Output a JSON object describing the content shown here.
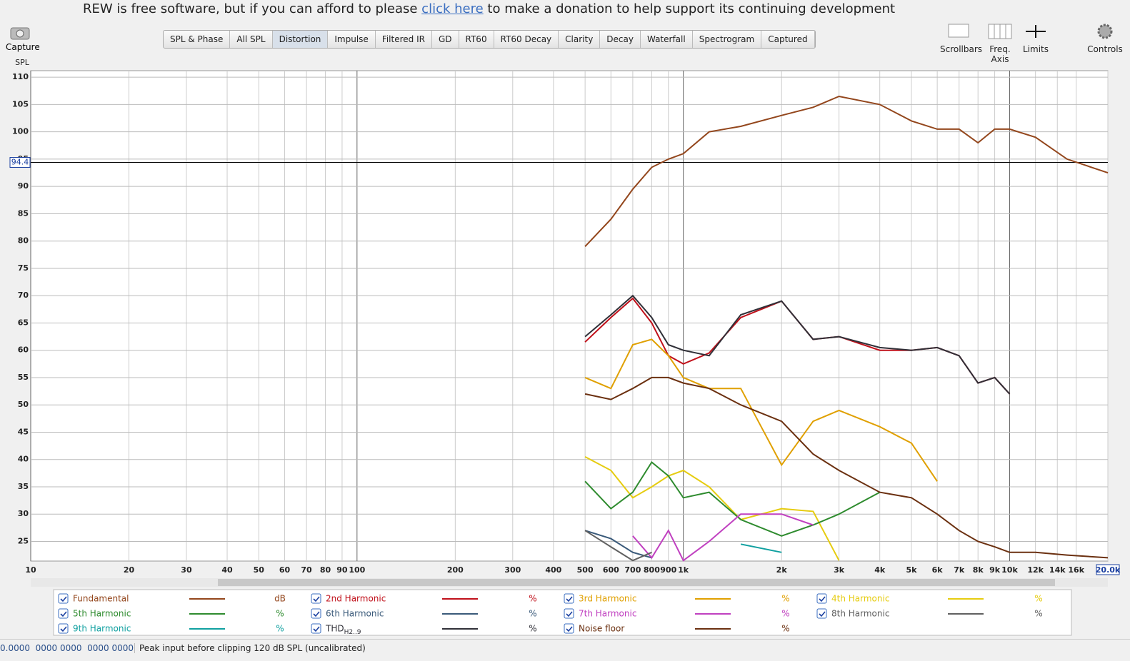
{
  "header": {
    "before": "REW is free software, but if you can afford to please",
    "link": "click here",
    "after": "to make a donation to help support its continuing development"
  },
  "capture": "Capture",
  "tabs": [
    "SPL & Phase",
    "All SPL",
    "Distortion",
    "Impulse",
    "Filtered IR",
    "GD",
    "RT60",
    "RT60 Decay",
    "Clarity",
    "Decay",
    "Waterfall",
    "Spectrogram",
    "Captured"
  ],
  "active_tab": "Distortion",
  "tools": [
    "Scrollbars",
    "Freq. Axis",
    "Limits",
    "Controls"
  ],
  "chart_data": {
    "type": "line",
    "ylabel": "SPL",
    "xscale": "log",
    "grid": true,
    "xlim": [
      10,
      20000
    ],
    "ylim": [
      21.4,
      111.2
    ],
    "xticks": [
      10,
      20,
      30,
      40,
      50,
      60,
      70,
      80,
      90,
      100,
      200,
      300,
      400,
      500,
      600,
      700,
      800,
      900,
      {
        "value": 1000,
        "label": "1k"
      },
      {
        "value": 2000,
        "label": "2k"
      },
      {
        "value": 3000,
        "label": "3k"
      },
      {
        "value": 4000,
        "label": "4k"
      },
      {
        "value": 5000,
        "label": "5k"
      },
      {
        "value": 6000,
        "label": "6k"
      },
      {
        "value": 7000,
        "label": "7k"
      },
      {
        "value": 8000,
        "label": "8k"
      },
      {
        "value": 9000,
        "label": "9k"
      },
      {
        "value": 10000,
        "label": "10k"
      },
      {
        "value": 12000,
        "label": "12k"
      },
      {
        "value": 14000,
        "label": "14k"
      },
      {
        "value": 16000,
        "label": "16k"
      },
      {
        "value": 20000,
        "label": "20.0k"
      }
    ],
    "yticks": [
      25,
      30,
      35,
      40,
      45,
      50,
      55,
      60,
      65,
      70,
      75,
      80,
      85,
      90,
      95,
      100,
      105,
      110
    ],
    "cursor_y": 94.4,
    "x": [
      500,
      600,
      700,
      800,
      900,
      1000,
      1200,
      1500,
      2000,
      2500,
      3000,
      4000,
      5000,
      6000,
      7000,
      8000,
      9000,
      10000,
      12000,
      15000,
      20000
    ],
    "series": [
      {
        "name": "Fundamental",
        "unit": "dB",
        "color": "#93461c",
        "values": [
          79,
          84,
          89.5,
          93.5,
          95,
          96,
          100,
          101,
          103,
          104.5,
          106.5,
          105,
          102,
          100.5,
          100.5,
          98,
          100.5,
          100.5,
          99,
          95,
          92.5
        ]
      },
      {
        "name": "2nd Harmonic",
        "unit": "%",
        "color": "#c0101a",
        "values": [
          61.5,
          66,
          69.5,
          65,
          59,
          57.5,
          59.5,
          66,
          69,
          62,
          62.5,
          60,
          60,
          60.5,
          59,
          54,
          55,
          52,
          null,
          null,
          null
        ]
      },
      {
        "name": "3rd Harmonic",
        "unit": "%",
        "color": "#e0a000",
        "values": [
          55,
          53,
          61,
          62,
          59,
          55,
          53,
          53,
          39,
          47,
          49,
          46,
          43,
          36,
          null,
          null,
          null,
          null,
          null,
          null,
          null
        ]
      },
      {
        "name": "4th Harmonic",
        "unit": "%",
        "color": "#e6cc10",
        "values": [
          40.5,
          38,
          33,
          35,
          37,
          38,
          35,
          29,
          31,
          30.5,
          21.5,
          null,
          null,
          null,
          null,
          null,
          null,
          null,
          null,
          null,
          null
        ]
      },
      {
        "name": "5th Harmonic",
        "unit": "%",
        "color": "#2e8b2e",
        "values": [
          36,
          31,
          34,
          39.5,
          37,
          33,
          34,
          29,
          26,
          28,
          30,
          34,
          null,
          null,
          null,
          null,
          null,
          null,
          null,
          null,
          null
        ]
      },
      {
        "name": "6th Harmonic",
        "unit": "%",
        "color": "#3a5a7a",
        "values": [
          27,
          25.5,
          23,
          22,
          null,
          null,
          null,
          null,
          null,
          null,
          null,
          null,
          null,
          null,
          null,
          null,
          null,
          null,
          null,
          null,
          null
        ]
      },
      {
        "name": "7th Harmonic",
        "unit": "%",
        "color": "#c040c0",
        "values": [
          null,
          null,
          26,
          22,
          27,
          21.5,
          25,
          30,
          30,
          28,
          null,
          null,
          null,
          null,
          null,
          null,
          null,
          null,
          null,
          null,
          null
        ]
      },
      {
        "name": "8th Harmonic",
        "unit": "%",
        "color": "#606060",
        "values": [
          27,
          24,
          21.5,
          23,
          null,
          null,
          null,
          null,
          null,
          null,
          null,
          null,
          null,
          null,
          null,
          null,
          null,
          null,
          null,
          null,
          null
        ]
      },
      {
        "name": "9th Harmonic",
        "unit": "%",
        "color": "#10a0a0",
        "values": [
          null,
          null,
          null,
          null,
          null,
          null,
          null,
          24.5,
          23,
          null,
          null,
          null,
          null,
          null,
          null,
          null,
          null,
          null,
          null,
          null,
          null
        ]
      },
      {
        "name": "THD",
        "sub": "H2..9",
        "unit": "%",
        "color": "#303038",
        "values": [
          62.5,
          66.5,
          70,
          66,
          61,
          60,
          59,
          66.5,
          69,
          62,
          62.5,
          60.5,
          60,
          60.5,
          59,
          54,
          55,
          52,
          null,
          null,
          null
        ]
      },
      {
        "name": "Noise floor",
        "unit": "%",
        "color": "#6b3010",
        "values": [
          52,
          51,
          53,
          55,
          55,
          54,
          53,
          50,
          47,
          41,
          38,
          34,
          33,
          30,
          27,
          25,
          24,
          23,
          23,
          22.5,
          22
        ]
      }
    ]
  },
  "status": {
    "coords": "0.0000  0000 0000  0000 0000",
    "message": "Peak input before clipping 120 dB SPL (uncalibrated)"
  }
}
